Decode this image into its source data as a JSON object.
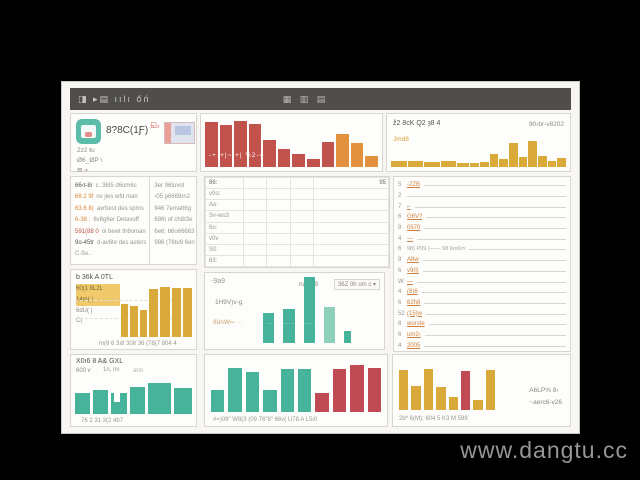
{
  "watermark": "www.dangtu.cc",
  "colors": {
    "red": "#c2524c",
    "orange": "#e2923e",
    "gold": "#d9a93a",
    "gold_l": "#e6c162",
    "teal": "#47b39a",
    "teal_l": "#8fd0bd",
    "red2": "#c14b55",
    "header_bg": "#4f4e4b",
    "accent_orange": "#d7873b",
    "accent_red": "#c05045"
  },
  "header": {
    "left_icons": "◨ ▸▤ ıılı őń",
    "title": "▦ ▥ ▤"
  },
  "panels": {
    "profile": {
      "title": "8?8C(1Ƒ)",
      "badge": "◱₂",
      "lines": [
        "2z2 ŧu",
        "Ø6_ØP \\",
        "✉   ⌁"
      ]
    },
    "red_chart": {
      "overlay": "-+·+|~|+| ½2-4",
      "bars": [
        {
          "h": 0.93,
          "c": "red"
        },
        {
          "h": 0.88,
          "c": "red"
        },
        {
          "h": 0.95,
          "c": "red"
        },
        {
          "h": 0.9,
          "c": "red"
        },
        {
          "h": 0.56,
          "c": "red"
        },
        {
          "h": 0.38,
          "c": "red"
        },
        {
          "h": 0.28,
          "c": "red"
        },
        {
          "h": 0.16,
          "c": "red"
        },
        {
          "h": 0.52,
          "c": "red"
        },
        {
          "h": 0.68,
          "c": "orange"
        },
        {
          "h": 0.5,
          "c": "orange"
        },
        {
          "h": 0.22,
          "c": "orange"
        }
      ]
    },
    "gold_hist": {
      "title": "ž2 8cK Q2 ȝ8 4",
      "date": "90›br-v8202",
      "sub": "Jmd8",
      "bars": [
        {
          "h": 0.18,
          "w": 1.8
        },
        {
          "h": 0.2,
          "w": 1.8
        },
        {
          "h": 0.17,
          "w": 1.8
        },
        {
          "h": 0.2,
          "w": 1.8
        },
        {
          "h": 0.13,
          "w": 1.4
        },
        {
          "h": 0.12
        },
        {
          "h": 0.16
        },
        {
          "h": 0.42
        },
        {
          "h": 0.26
        },
        {
          "h": 0.74
        },
        {
          "h": 0.3
        },
        {
          "h": 0.8
        },
        {
          "h": 0.34
        },
        {
          "h": 0.2
        },
        {
          "h": 0.27
        }
      ]
    },
    "detail_list": {
      "left": [
        {
          "k": "66‹t-8ɾ",
          "c": "dark",
          "t": "c. 36t5 d6om6s"
        },
        {
          "k": "68.2 9f",
          "c": "orange",
          "t": "ov jies wfd man"
        },
        {
          "k": "63.6 8(",
          "c": "orange",
          "t": "avrbest des spms"
        },
        {
          "k": "6-38 ;",
          "c": "orange",
          "t": "6v8g6er Detavoff"
        },
        {
          "k": "591(88 0",
          "c": "red",
          "t": "oi bewt th6oman"
        },
        {
          "k": "9o-45tr",
          "c": "dark",
          "t": "d-av6te des asters"
        },
        {
          "k": "C-9a..",
          "c": "gray",
          "t": ""
        }
      ],
      "right": [
        "3er 96tuvot",
        "‹05 p6669rn2",
        "946 7ematt6g",
        "686t of ch8t3e",
        "6e6: b6o66663",
        "986 (76tu9 6en"
      ]
    },
    "schedule": {
      "corner": "95",
      "rows": [
        "86:",
        "v0o:",
        "Ao:",
        "Sv-wo3",
        "6o:",
        "v0v",
        "S0:",
        "63:"
      ],
      "cols": 4
    },
    "rank": {
      "rows": [
        {
          "n": "5",
          "label": "-2ZB",
          "note": ""
        },
        {
          "n": "2",
          "label": "",
          "note": ""
        },
        {
          "n": "7",
          "label": "⌐",
          "note": ""
        },
        {
          "n": "6",
          "label": "G6V?",
          "note": ""
        },
        {
          "n": "9",
          "label": "0570",
          "note": ""
        },
        {
          "n": "4",
          "label": "—",
          "note": ""
        },
        {
          "n": "6",
          "label": "",
          "note": "98) P09 (——   98 6m6m"
        },
        {
          "n": "9",
          "label": "A8w",
          "note": ""
        },
        {
          "n": "6",
          "label": "v9(l)",
          "note": ""
        },
        {
          "n": "W",
          "label": "—",
          "note": ""
        },
        {
          "n": "4",
          "label": "(8)6",
          "note": ""
        },
        {
          "n": "6",
          "label": "62h8",
          "note": ""
        },
        {
          "n": "52",
          "label": "(15)w",
          "note": ""
        },
        {
          "n": "8",
          "label": "worste",
          "note": ""
        },
        {
          "n": "6",
          "label": "um2‹",
          "note": ""
        },
        {
          "n": "4",
          "label": "2005",
          "note": ""
        }
      ]
    },
    "gold_chart": {
      "title": "b 36k A 0TL",
      "legend": [
        {
          "t": "60(1 8L2L",
          "hl": true
        },
        {
          "t": "14m( |",
          "hl": true
        },
        {
          "t": "6dU( |",
          "hl": false
        },
        {
          "t": "C(",
          "hl": false
        }
      ],
      "xlabels": "m(8 6 3ı8    308 36 (78(7 804 4",
      "bars": [
        {
          "h": 0.62,
          "w": 0.8
        },
        {
          "h": 0.57,
          "w": 0.8
        },
        {
          "h": 0.5,
          "w": 0.8
        },
        {
          "h": 0.88
        },
        {
          "h": 0.92
        },
        {
          "h": 0.9
        },
        {
          "h": 0.9
        }
      ]
    },
    "green_chart": {
      "title": "-9a9",
      "label1": "1H9V)v-g",
      "label2": "8ünW=····",
      "right_label": "na5D9",
      "dropdown": "36Z 0h om c ▾",
      "overlay": "···· ····· ·····",
      "bars": [
        {
          "h": 0.45
        },
        {
          "h": 0.52
        },
        {
          "h": 1.0
        },
        {
          "h": 0.55,
          "c": "teal_l"
        },
        {
          "h": 0.18,
          "w": 0.6
        }
      ]
    },
    "teal_wide": {
      "title": "X0ı6 8 A& GXL",
      "sub1": "600 v",
      "sub2": "1n, nv",
      "tip": "ann",
      "xlabels": "76 2         31 3(2        4b7",
      "bars": [
        {
          "h": 0.55
        },
        {
          "h": 0.62
        },
        {
          "h": 0.55,
          "notch": 1
        },
        {
          "h": 0.68
        },
        {
          "h": 0.8,
          "w": 1.5
        },
        {
          "h": 0.66,
          "w": 1.2
        }
      ]
    },
    "teal_red": {
      "xlabels": "#=)09\" W8(3 (09 76\"8\" 66v(  U78 A L5ı0",
      "bars": [
        {
          "h": 0.45,
          "c": "teal"
        },
        {
          "h": 0.9,
          "c": "teal"
        },
        {
          "h": 0.82,
          "c": "teal"
        },
        {
          "h": 0.45,
          "c": "teal"
        },
        {
          "h": 0.88,
          "c": "teal"
        },
        {
          "h": 0.88,
          "c": "teal"
        },
        {
          "h": 0.38,
          "c": "red2"
        },
        {
          "h": 0.88,
          "c": "red2"
        },
        {
          "h": 0.95,
          "c": "red2"
        },
        {
          "h": 0.9,
          "c": "red2"
        }
      ]
    },
    "gold_red": {
      "xlabels": "2b*   6(M);  604 5  K3 M  599",
      "side1": "A6LP% 8›",
      "side2": "~aerc6-v26",
      "bars": [
        {
          "h": 0.85
        },
        {
          "h": 0.52
        },
        {
          "h": 0.88
        },
        {
          "h": 0.5
        },
        {
          "h": 0.28
        },
        {
          "h": 0.82,
          "c": "red2"
        },
        {
          "h": 0.22
        },
        {
          "h": 0.85
        }
      ]
    }
  }
}
